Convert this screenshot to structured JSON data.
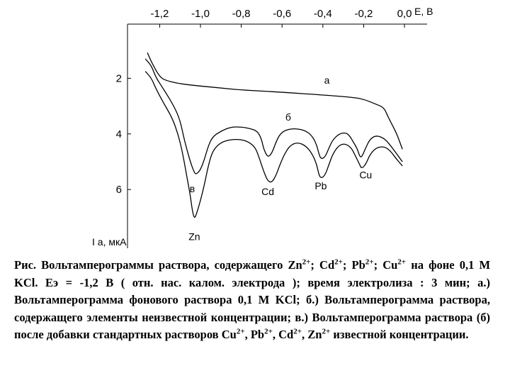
{
  "chart_data": {
    "type": "line",
    "xlabel": "E, В",
    "ylabel": "I a, мкА",
    "x_ticks": [
      "-1,2",
      "-1,0",
      "-0,8",
      "-0,6",
      "-0,4",
      "-0,2",
      "0,0"
    ],
    "x_tick_values": [
      -1.2,
      -1.0,
      -0.8,
      -0.6,
      -0.4,
      -0.2,
      0.0
    ],
    "y_ticks": [
      "2",
      "4",
      "6"
    ],
    "y_tick_values": [
      2,
      4,
      6
    ],
    "xlim": [
      -1.3,
      0.0
    ],
    "ylim": [
      0.5,
      8.6
    ],
    "y_direction": "down",
    "series": [
      {
        "name": "а",
        "points": [
          [
            -1.26,
            1.08
          ],
          [
            -1.24,
            1.42
          ],
          [
            -1.2,
            1.95
          ],
          [
            -1.17,
            2.08
          ],
          [
            -1.1,
            2.2
          ],
          [
            -1.0,
            2.28
          ],
          [
            -0.9,
            2.35
          ],
          [
            -0.8,
            2.42
          ],
          [
            -0.6,
            2.5
          ],
          [
            -0.4,
            2.6
          ],
          [
            -0.26,
            2.68
          ],
          [
            -0.2,
            2.75
          ],
          [
            -0.14,
            2.93
          ],
          [
            -0.1,
            3.05
          ],
          [
            -0.08,
            3.4
          ],
          [
            -0.04,
            3.95
          ],
          [
            -0.01,
            4.55
          ]
        ]
      },
      {
        "name": "б",
        "peak_labels": [
          "Zn"
        ],
        "points": [
          [
            -1.27,
            1.3
          ],
          [
            -1.24,
            1.55
          ],
          [
            -1.22,
            1.95
          ],
          [
            -1.18,
            2.4
          ],
          [
            -1.13,
            3.0
          ],
          [
            -1.1,
            3.5
          ],
          [
            -1.08,
            4.2
          ],
          [
            -1.05,
            5.0
          ],
          [
            -1.03,
            5.4
          ],
          [
            -1.02,
            5.45
          ],
          [
            -1.0,
            5.3
          ],
          [
            -0.98,
            4.9
          ],
          [
            -0.96,
            4.4
          ],
          [
            -0.94,
            4.1
          ],
          [
            -0.9,
            3.9
          ],
          [
            -0.85,
            3.75
          ],
          [
            -0.8,
            3.75
          ],
          [
            -0.76,
            3.8
          ],
          [
            -0.72,
            3.9
          ],
          [
            -0.7,
            4.2
          ],
          [
            -0.69,
            4.55
          ],
          [
            -0.67,
            4.85
          ],
          [
            -0.65,
            4.7
          ],
          [
            -0.63,
            4.3
          ],
          [
            -0.61,
            4.0
          ],
          [
            -0.58,
            3.85
          ],
          [
            -0.53,
            3.8
          ],
          [
            -0.48,
            3.9
          ],
          [
            -0.45,
            4.1
          ],
          [
            -0.43,
            4.4
          ],
          [
            -0.42,
            4.7
          ],
          [
            -0.41,
            4.9
          ],
          [
            -0.39,
            4.85
          ],
          [
            -0.37,
            4.5
          ],
          [
            -0.35,
            4.2
          ],
          [
            -0.32,
            4.0
          ],
          [
            -0.29,
            3.95
          ],
          [
            -0.27,
            4.05
          ],
          [
            -0.25,
            4.3
          ],
          [
            -0.23,
            4.55
          ],
          [
            -0.22,
            4.8
          ],
          [
            -0.21,
            4.85
          ],
          [
            -0.19,
            4.5
          ],
          [
            -0.17,
            4.2
          ],
          [
            -0.14,
            4.05
          ],
          [
            -0.1,
            4.15
          ],
          [
            -0.07,
            4.4
          ],
          [
            -0.04,
            4.7
          ],
          [
            -0.01,
            5.0
          ]
        ]
      },
      {
        "name": "в",
        "peak_labels": [
          "Zn",
          "Cd",
          "Pb",
          "Cu"
        ],
        "points": [
          [
            -1.27,
            1.75
          ],
          [
            -1.24,
            2.0
          ],
          [
            -1.22,
            2.35
          ],
          [
            -1.18,
            2.9
          ],
          [
            -1.14,
            3.4
          ],
          [
            -1.11,
            4.0
          ],
          [
            -1.09,
            4.6
          ],
          [
            -1.07,
            5.4
          ],
          [
            -1.05,
            6.2
          ],
          [
            -1.04,
            6.75
          ],
          [
            -1.03,
            7.05
          ],
          [
            -1.02,
            6.9
          ],
          [
            -1.0,
            6.4
          ],
          [
            -0.98,
            5.8
          ],
          [
            -0.96,
            5.1
          ],
          [
            -0.94,
            4.6
          ],
          [
            -0.9,
            4.3
          ],
          [
            -0.85,
            4.2
          ],
          [
            -0.8,
            4.2
          ],
          [
            -0.76,
            4.3
          ],
          [
            -0.73,
            4.5
          ],
          [
            -0.71,
            4.9
          ],
          [
            -0.69,
            5.35
          ],
          [
            -0.67,
            5.7
          ],
          [
            -0.65,
            5.75
          ],
          [
            -0.63,
            5.5
          ],
          [
            -0.61,
            5.1
          ],
          [
            -0.59,
            4.75
          ],
          [
            -0.56,
            4.4
          ],
          [
            -0.52,
            4.3
          ],
          [
            -0.48,
            4.45
          ],
          [
            -0.45,
            4.75
          ],
          [
            -0.43,
            5.1
          ],
          [
            -0.42,
            5.45
          ],
          [
            -0.41,
            5.6
          ],
          [
            -0.39,
            5.5
          ],
          [
            -0.37,
            5.1
          ],
          [
            -0.35,
            4.7
          ],
          [
            -0.32,
            4.4
          ],
          [
            -0.29,
            4.35
          ],
          [
            -0.26,
            4.5
          ],
          [
            -0.24,
            4.8
          ],
          [
            -0.22,
            5.1
          ],
          [
            -0.21,
            5.25
          ],
          [
            -0.19,
            5.1
          ],
          [
            -0.17,
            4.75
          ],
          [
            -0.14,
            4.5
          ],
          [
            -0.1,
            4.45
          ],
          [
            -0.07,
            4.6
          ],
          [
            -0.04,
            4.9
          ],
          [
            -0.01,
            5.15
          ]
        ]
      }
    ],
    "annotations": [
      {
        "text": "а",
        "x": -0.38,
        "y": 2.2
      },
      {
        "text": "б",
        "x": -0.57,
        "y": 3.52
      },
      {
        "text": "в",
        "x": -1.04,
        "y": 6.1
      },
      {
        "text": "Zn",
        "x": -1.03,
        "y": 7.82
      },
      {
        "text": "Cd",
        "x": -0.67,
        "y": 6.2
      },
      {
        "text": "Pb",
        "x": -0.41,
        "y": 6.0
      },
      {
        "text": "Cu",
        "x": -0.19,
        "y": 5.6
      }
    ]
  },
  "caption": {
    "fig_prefix": "Рис.",
    "l1_a": "Вольтамперограммы раствора, содержащего Zn",
    "l1_b": "; Cd",
    "l1_c": "; Pb",
    "l1_d": "; Cu",
    "charge": "2+",
    "l2": "на фоне 0,1 М KCl. Eэ = -1,2 В ( отн. нас. калом. электрода ); время",
    "l3": "электролиза : 3 мин; а.) Вольтамперограмма фонового раствора 0,1 М",
    "l4": "KCl; б.) Вольтамперограмма раствора, содержащего элементы",
    "l5": "неизвестной концентрации; в.) Вольтамперограмма раствора (б) после",
    "l6_a": "добавки стандартных растворов Cu",
    "l6_b": ", Pb",
    "l6_c": ", Cd",
    "l6_d": ", Zn",
    "l6_e": "известной",
    "l7": "концентрации."
  }
}
